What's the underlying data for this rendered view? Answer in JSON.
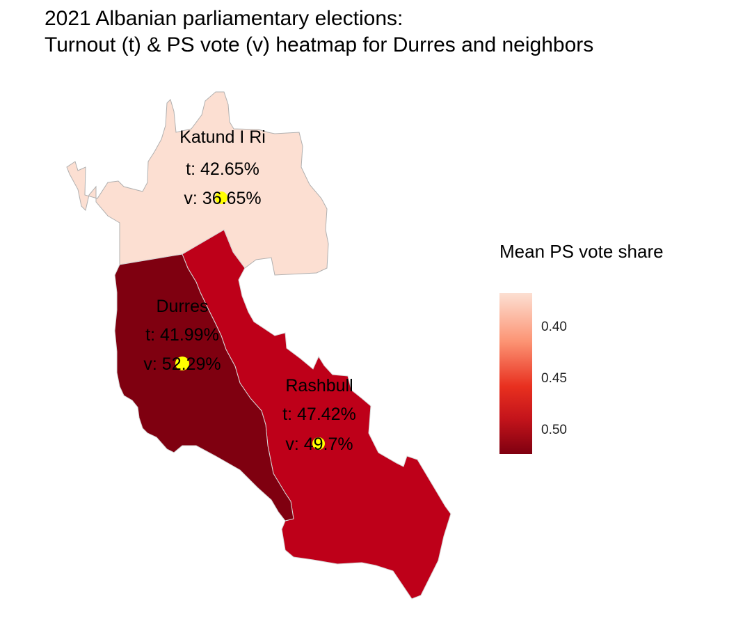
{
  "chart_data": {
    "type": "heatmap",
    "title": "2021 Albanian parliamentary elections:\nTurnout (t) & PS vote (v) heatmap for Durres and neighbors",
    "title_lines": [
      "2021 Albanian parliamentary elections:",
      "Turnout (t) & PS vote (v) heatmap for Durres and neighbors"
    ],
    "regions": [
      {
        "name": "Katund I Ri",
        "turnout_label": "t: 42.65%",
        "vote_label": "v: 36.65%",
        "turnout": 42.65,
        "vote": 36.65,
        "fill": "#FCDFD2"
      },
      {
        "name": "Durres",
        "turnout_label": "t: 41.99%",
        "vote_label": "v: 52.29%",
        "turnout": 41.99,
        "vote": 52.29,
        "fill": "#7F0010"
      },
      {
        "name": "Rashbull",
        "turnout_label": "t: 47.42%",
        "vote_label": "v: 49.7%",
        "turnout": 47.42,
        "vote": 49.7,
        "fill": "#BE0019"
      }
    ],
    "point_color": "#FFFF00",
    "legend": {
      "title": "Mean PS vote share",
      "ticks": [
        {
          "label": "0.40",
          "value": 0.4
        },
        {
          "label": "0.45",
          "value": 0.45
        },
        {
          "label": "0.50",
          "value": 0.5
        }
      ],
      "range": [
        0.3665,
        0.5229
      ],
      "reversed": true,
      "low_color": "#FCDFD2",
      "mid_color": "#E8301F",
      "high_color": "#7F0010",
      "position": "right"
    },
    "grid": false
  }
}
